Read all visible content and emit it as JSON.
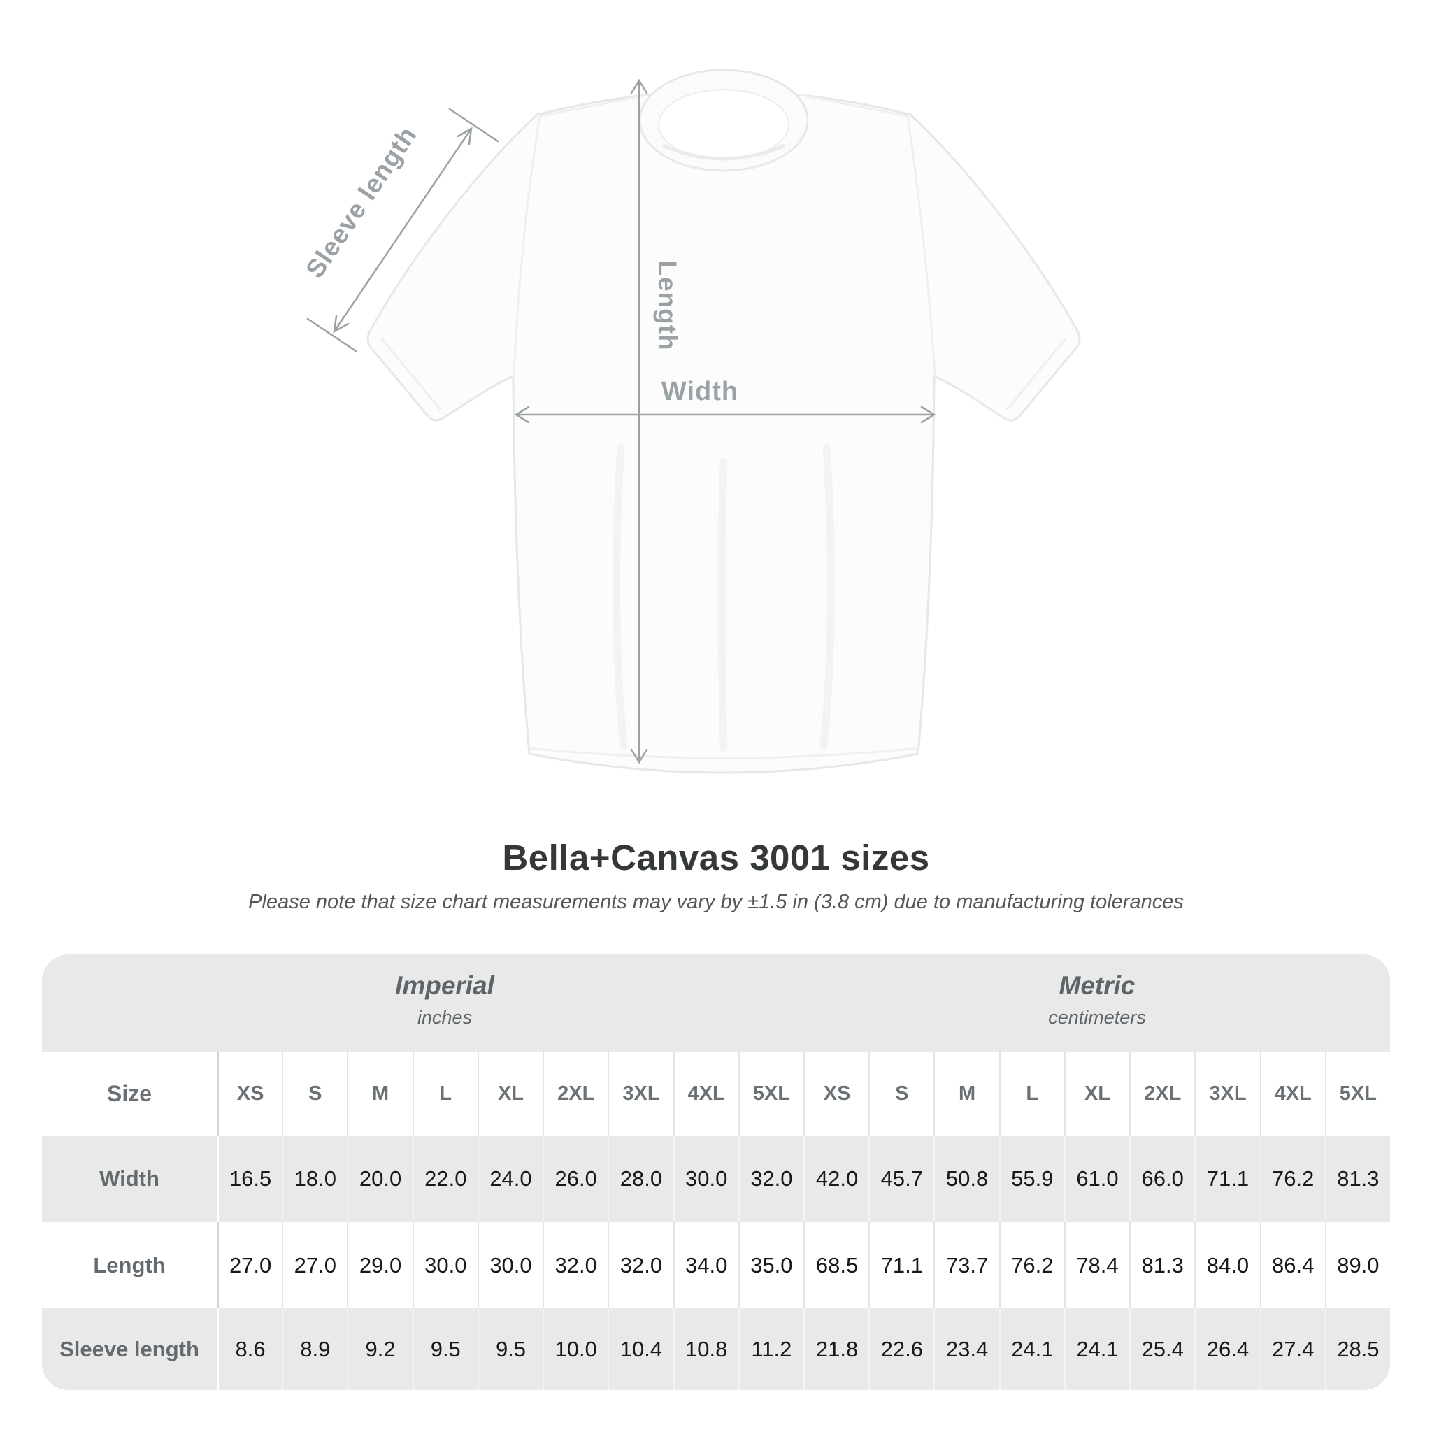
{
  "illustration": {
    "sleeve_length_label": "Sleeve length",
    "length_label": "Length",
    "width_label": "Width"
  },
  "title": "Bella+Canvas 3001 sizes",
  "subtitle": "Please note that size chart measurements may vary by ±1.5 in (3.8 cm) due to manufacturing tolerances",
  "table": {
    "size_column_header": "Size",
    "sizes": [
      "XS",
      "S",
      "M",
      "L",
      "XL",
      "2XL",
      "3XL",
      "4XL",
      "5XL"
    ],
    "sections": [
      {
        "label": "Imperial",
        "sublabel": "inches"
      },
      {
        "label": "Metric",
        "sublabel": "centimeters"
      }
    ],
    "rows": [
      {
        "label": "Width",
        "imperial": [
          "16.5",
          "18.0",
          "20.0",
          "22.0",
          "24.0",
          "26.0",
          "28.0",
          "30.0",
          "32.0"
        ],
        "metric": [
          "42.0",
          "45.7",
          "50.8",
          "55.9",
          "61.0",
          "66.0",
          "71.1",
          "76.2",
          "81.3"
        ]
      },
      {
        "label": "Length",
        "imperial": [
          "27.0",
          "27.0",
          "29.0",
          "30.0",
          "30.0",
          "32.0",
          "32.0",
          "34.0",
          "35.0"
        ],
        "metric": [
          "68.5",
          "71.1",
          "73.7",
          "76.2",
          "78.4",
          "81.3",
          "84.0",
          "86.4",
          "89.0"
        ]
      },
      {
        "label": "Sleeve length",
        "imperial": [
          "8.6",
          "8.9",
          "9.2",
          "9.5",
          "9.5",
          "10.0",
          "10.4",
          "10.8",
          "11.2"
        ],
        "metric": [
          "21.8",
          "22.6",
          "23.4",
          "24.1",
          "24.1",
          "25.4",
          "26.4",
          "27.4",
          "28.5"
        ]
      }
    ]
  },
  "colors": {
    "accent_gray": "#9ba2a6",
    "card_background": "#e9e9e9",
    "header_text": "#6a7175",
    "data_text": "#17191a"
  },
  "chart_data": {
    "type": "table",
    "title": "Bella+Canvas 3001 sizes",
    "note": "Please note that size chart measurements may vary by ±1.5 in (3.8 cm) due to manufacturing tolerances",
    "column_groups": [
      {
        "label": "Imperial",
        "unit": "inches",
        "columns": [
          "XS",
          "S",
          "M",
          "L",
          "XL",
          "2XL",
          "3XL",
          "4XL",
          "5XL"
        ]
      },
      {
        "label": "Metric",
        "unit": "centimeters",
        "columns": [
          "XS",
          "S",
          "M",
          "L",
          "XL",
          "2XL",
          "3XL",
          "4XL",
          "5XL"
        ]
      }
    ],
    "rows": [
      {
        "label": "Width",
        "imperial_in": [
          16.5,
          18.0,
          20.0,
          22.0,
          24.0,
          26.0,
          28.0,
          30.0,
          32.0
        ],
        "metric_cm": [
          42.0,
          45.7,
          50.8,
          55.9,
          61.0,
          66.0,
          71.1,
          76.2,
          81.3
        ]
      },
      {
        "label": "Length",
        "imperial_in": [
          27.0,
          27.0,
          29.0,
          30.0,
          30.0,
          32.0,
          32.0,
          34.0,
          35.0
        ],
        "metric_cm": [
          68.5,
          71.1,
          73.7,
          76.2,
          78.4,
          81.3,
          84.0,
          86.4,
          89.0
        ]
      },
      {
        "label": "Sleeve length",
        "imperial_in": [
          8.6,
          8.9,
          9.2,
          9.5,
          9.5,
          10.0,
          10.4,
          10.8,
          11.2
        ],
        "metric_cm": [
          21.8,
          22.6,
          23.4,
          24.1,
          24.1,
          25.4,
          26.4,
          27.4,
          28.5
        ]
      }
    ]
  }
}
